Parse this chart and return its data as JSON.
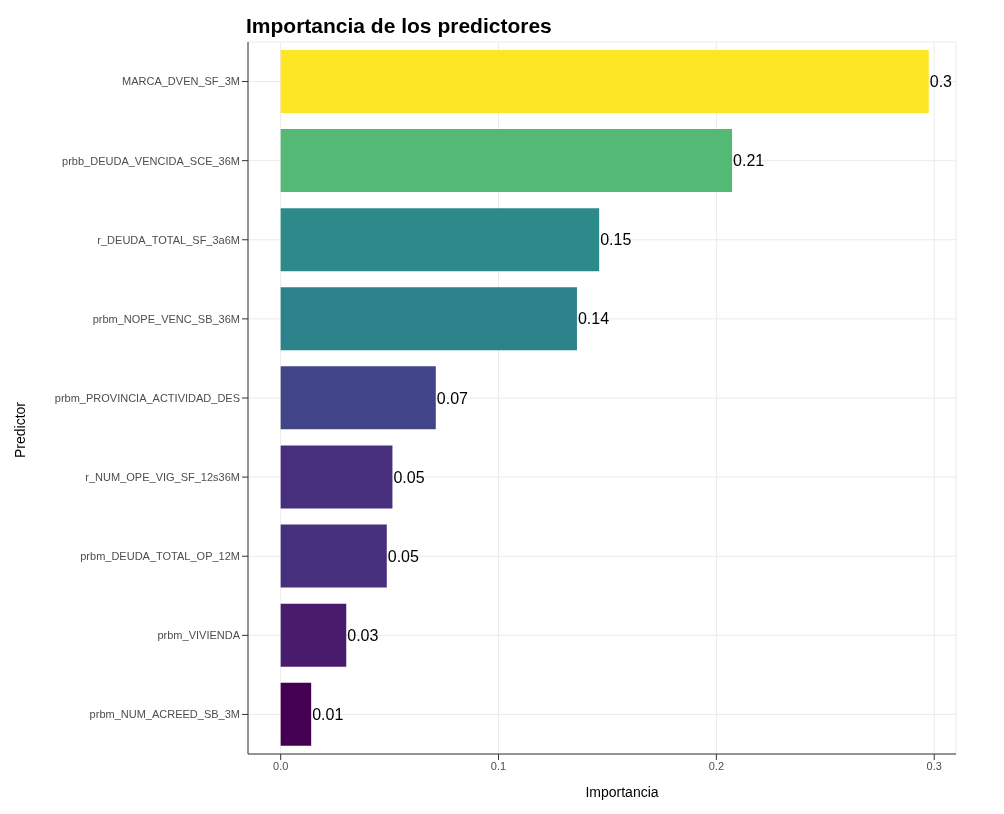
{
  "chart_data": {
    "type": "bar",
    "orientation": "horizontal",
    "title": "Importancia de los predictores",
    "xlabel": "Importancia",
    "ylabel": "Predictor",
    "categories": [
      "MARCA_DVEN_SF_3M",
      "prbb_DEUDA_VENCIDA_SCE_36M",
      "r_DEUDA_TOTAL_SF_3a6M",
      "prbm_NOPE_VENC_SB_36M",
      "prbm_PROVINCIA_ACTIVIDAD_DES",
      "r_NUM_OPE_VIG_SF_12s36M",
      "prbm_DEUDA_TOTAL_OP_12M",
      "prbm_VIVIENDA",
      "prbm_NUM_ACREED_SB_3M"
    ],
    "values": [
      0.2975,
      0.2072,
      0.1462,
      0.136,
      0.0712,
      0.0513,
      0.0487,
      0.0301,
      0.014
    ],
    "value_labels": [
      "0.3",
      "0.21",
      "0.15",
      "0.14",
      "0.07",
      "0.05",
      "0.05",
      "0.03",
      "0.01"
    ],
    "colors": [
      "#fde725",
      "#54b974",
      "#2d8a8a",
      "#2b828b",
      "#414487",
      "#472f7d",
      "#462f7c",
      "#481b6d",
      "#440154"
    ],
    "xlim": [
      -0.015,
      0.31
    ],
    "xticks": [
      {
        "value": 0,
        "label": "0.0"
      },
      0.1,
      0.2,
      0.3
    ],
    "grid": true
  }
}
